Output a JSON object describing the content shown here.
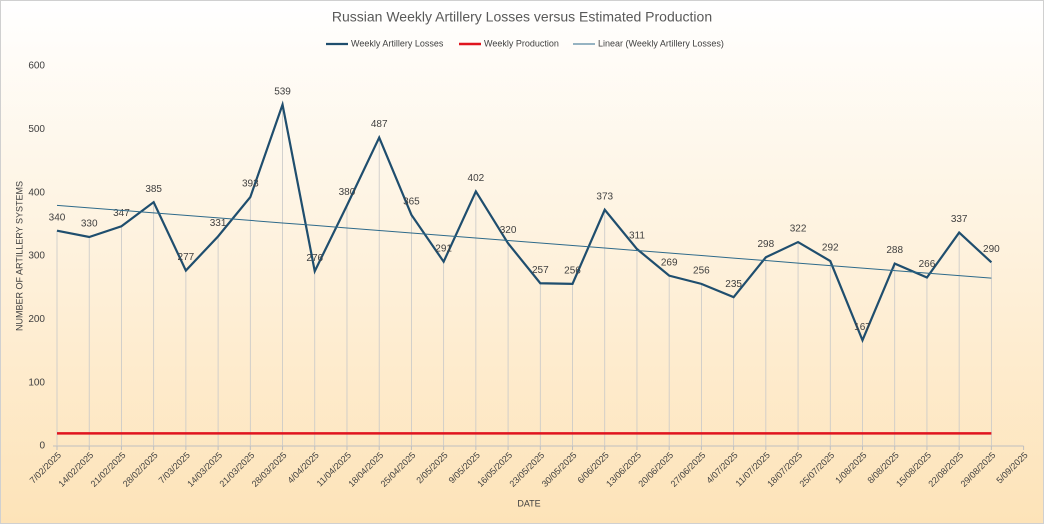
{
  "chart_data": {
    "type": "line",
    "title": "Russian Weekly Artillery Losses versus Estimated Production",
    "x_label": "DATE",
    "y_label": "NUMBER OF ARTILLERY SYSTEMS",
    "categories": [
      "7/02/2025",
      "14/02/2025",
      "21/02/2025",
      "28/02/2025",
      "7/03/2025",
      "14/03/2025",
      "21/03/2025",
      "28/03/2025",
      "4/04/2025",
      "11/04/2025",
      "18/04/2025",
      "25/04/2025",
      "2/05/2025",
      "9/05/2025",
      "16/05/2025",
      "23/05/2025",
      "30/05/2025",
      "6/06/2025",
      "13/06/2025",
      "20/06/2025",
      "27/06/2025",
      "4/07/2025",
      "11/07/2025",
      "18/07/2025",
      "25/07/2025",
      "1/08/2025",
      "8/08/2025",
      "15/08/2025",
      "22/08/2025",
      "29/08/2025",
      "5/09/2025"
    ],
    "series": [
      {
        "name": "Weekly Artillery Losses",
        "color": "#1f4e6e",
        "width": 2.2,
        "labels": true,
        "drops": true,
        "values": [
          340,
          330,
          347,
          385,
          277,
          331,
          393,
          539,
          276,
          380,
          487,
          365,
          291,
          402,
          320,
          257,
          256,
          373,
          311,
          269,
          256,
          235,
          298,
          322,
          292,
          167,
          288,
          266,
          337,
          290,
          null
        ]
      },
      {
        "name": "Weekly Production",
        "color": "#e0141e",
        "width": 2.5,
        "values": [
          20,
          20,
          20,
          20,
          20,
          20,
          20,
          20,
          20,
          20,
          20,
          20,
          20,
          20,
          20,
          20,
          20,
          20,
          20,
          20,
          20,
          20,
          20,
          20,
          20,
          20,
          20,
          20,
          20,
          20,
          null
        ]
      },
      {
        "name": "Linear (Weekly Artillery Losses)",
        "color": "#2e6a8a",
        "width": 1,
        "values": [
          380,
          376,
          372.1,
          368.1,
          364.1,
          360.2,
          356.2,
          352.2,
          348.3,
          344.3,
          340.3,
          336.4,
          332.4,
          328.4,
          324.5,
          320.5,
          316.6,
          312.6,
          308.6,
          304.7,
          300.7,
          296.7,
          292.8,
          288.8,
          284.8,
          280.9,
          276.9,
          272.9,
          269,
          265,
          null
        ]
      }
    ],
    "ylim": [
      0,
      600
    ],
    "yticks": [
      0,
      100,
      200,
      300,
      400,
      500,
      600
    ]
  }
}
